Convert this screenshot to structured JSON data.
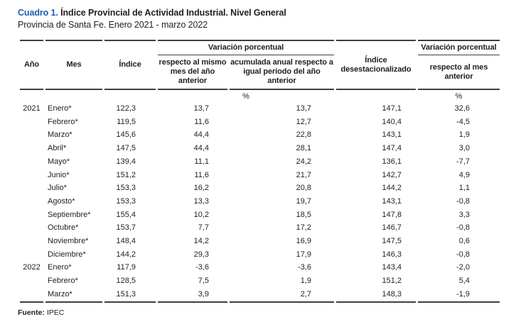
{
  "title": {
    "label": "Cuadro 1.",
    "text": "Índice Provincial de Actividad Industrial. Nivel General"
  },
  "subtitle": "Provincia de Santa Fe. Enero 2021 - marzo 2022",
  "colors": {
    "accent_blue": "#1f5fae",
    "rule_gray": "#3f3f3f"
  },
  "table": {
    "group_headers": {
      "variacion_left": "Variación porcentual",
      "variacion_right": "Variación porcentual"
    },
    "columns": {
      "anio": "Año",
      "mes": "Mes",
      "indice": "Índice",
      "resp_mismo_mes": "respecto al mismo mes del año anterior",
      "acumulada": "acumulada anual respecto a igual período del año anterior",
      "desest": "Índice desestacionalizado",
      "resp_mes_anterior": "respecto al mes anterior"
    },
    "unit_row": {
      "left": "%",
      "right": "%"
    },
    "rows": [
      {
        "anio": "2021",
        "mes": "Enero*",
        "indice": "122,3",
        "resp_mismo_mes": "13,7",
        "acumulada": "13,7",
        "desest": "147,1",
        "resp_mes_anterior": "32,6"
      },
      {
        "anio": "",
        "mes": "Febrero*",
        "indice": "119,5",
        "resp_mismo_mes": "11,6",
        "acumulada": "12,7",
        "desest": "140,4",
        "resp_mes_anterior": "-4,5"
      },
      {
        "anio": "",
        "mes": "Marzo*",
        "indice": "145,6",
        "resp_mismo_mes": "44,4",
        "acumulada": "22,8",
        "desest": "143,1",
        "resp_mes_anterior": "1,9"
      },
      {
        "anio": "",
        "mes": "Abril*",
        "indice": "147,5",
        "resp_mismo_mes": "44,4",
        "acumulada": "28,1",
        "desest": "147,4",
        "resp_mes_anterior": "3,0"
      },
      {
        "anio": "",
        "mes": "Mayo*",
        "indice": "139,4",
        "resp_mismo_mes": "11,1",
        "acumulada": "24,2",
        "desest": "136,1",
        "resp_mes_anterior": "-7,7"
      },
      {
        "anio": "",
        "mes": "Junio*",
        "indice": "151,2",
        "resp_mismo_mes": "11,6",
        "acumulada": "21,7",
        "desest": "142,7",
        "resp_mes_anterior": "4,9"
      },
      {
        "anio": "",
        "mes": "Julio*",
        "indice": "153,3",
        "resp_mismo_mes": "16,2",
        "acumulada": "20,8",
        "desest": "144,2",
        "resp_mes_anterior": "1,1"
      },
      {
        "anio": "",
        "mes": "Agosto*",
        "indice": "153,3",
        "resp_mismo_mes": "13,3",
        "acumulada": "19,7",
        "desest": "143,1",
        "resp_mes_anterior": "-0,8"
      },
      {
        "anio": "",
        "mes": "Septiembre*",
        "indice": "155,4",
        "resp_mismo_mes": "10,2",
        "acumulada": "18,5",
        "desest": "147,8",
        "resp_mes_anterior": "3,3"
      },
      {
        "anio": "",
        "mes": "Octubre*",
        "indice": "153,7",
        "resp_mismo_mes": "7,7",
        "acumulada": "17,2",
        "desest": "146,7",
        "resp_mes_anterior": "-0,8"
      },
      {
        "anio": "",
        "mes": "Noviembre*",
        "indice": "148,4",
        "resp_mismo_mes": "14,2",
        "acumulada": "16,9",
        "desest": "147,5",
        "resp_mes_anterior": "0,6"
      },
      {
        "anio": "",
        "mes": "Diciembre*",
        "indice": "144,2",
        "resp_mismo_mes": "29,3",
        "acumulada": "17,9",
        "desest": "146,3",
        "resp_mes_anterior": "-0,8"
      },
      {
        "anio": "2022",
        "mes": "Enero*",
        "indice": "117,9",
        "resp_mismo_mes": "-3,6",
        "acumulada": "-3,6",
        "desest": "143,4",
        "resp_mes_anterior": "-2,0"
      },
      {
        "anio": "",
        "mes": "Febrero*",
        "indice": "128,5",
        "resp_mismo_mes": "7,5",
        "acumulada": "1,9",
        "desest": "151,2",
        "resp_mes_anterior": "5,4"
      },
      {
        "anio": "",
        "mes": "Marzo*",
        "indice": "151,3",
        "resp_mismo_mes": "3,9",
        "acumulada": "2,7",
        "desest": "148,3",
        "resp_mes_anterior": "-1,9"
      }
    ]
  },
  "footer": {
    "label": "Fuente:",
    "text": "IPEC"
  }
}
